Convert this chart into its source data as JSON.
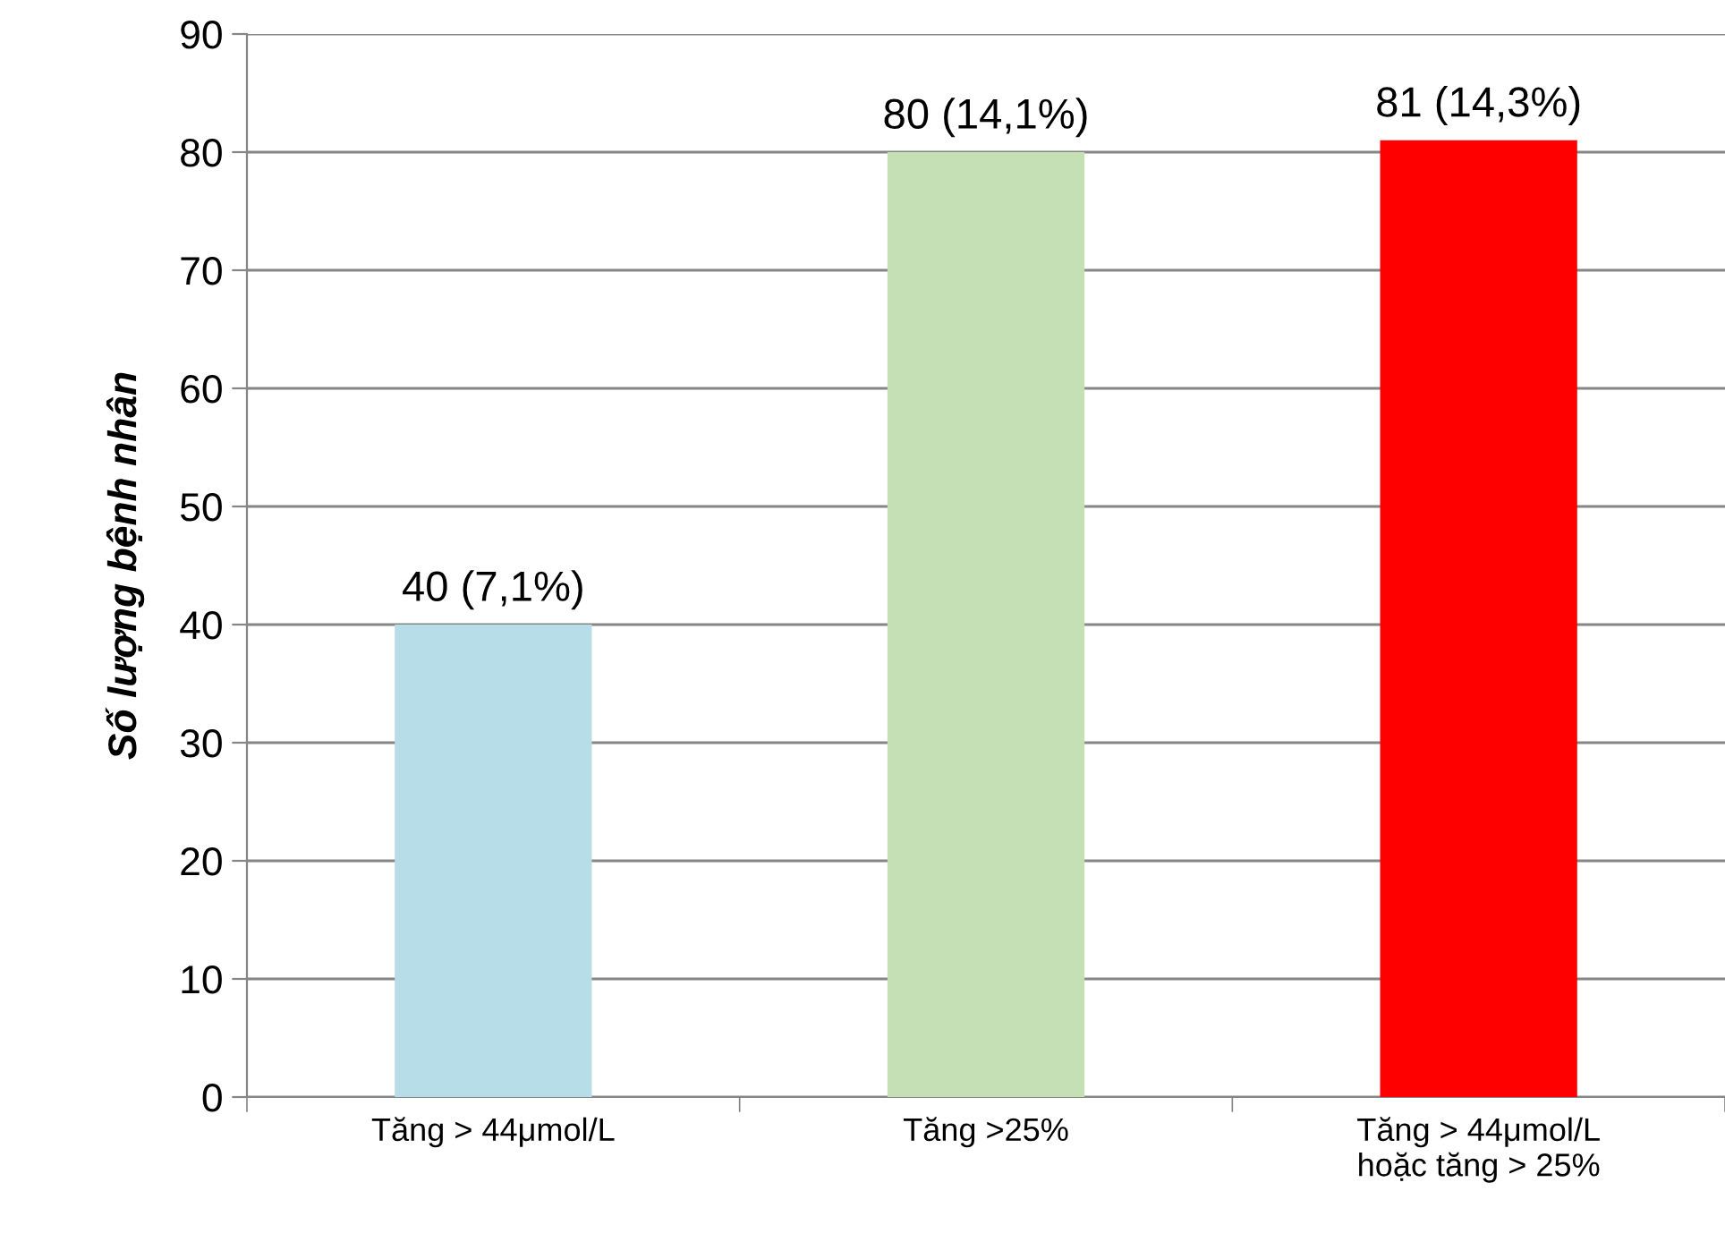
{
  "chart_data": {
    "type": "bar",
    "ylabel": "Số lượng bệnh nhân",
    "categories": [
      "Tăng > 44μmol/L",
      "Tăng >25%",
      "Tăng > 44μmol/L\nhoặc tăng > 25%"
    ],
    "values": [
      40,
      80,
      81
    ],
    "colors": [
      "#b7dde8",
      "#c4e0b4",
      "#ff0000"
    ],
    "value_labels": [
      "40 (7,1%)",
      "80 (14,1%)",
      "81 (14,3%)"
    ],
    "ylim": [
      0,
      90
    ],
    "yticks": [
      0,
      10,
      20,
      30,
      40,
      50,
      60,
      70,
      80,
      90
    ],
    "grid": "y"
  }
}
